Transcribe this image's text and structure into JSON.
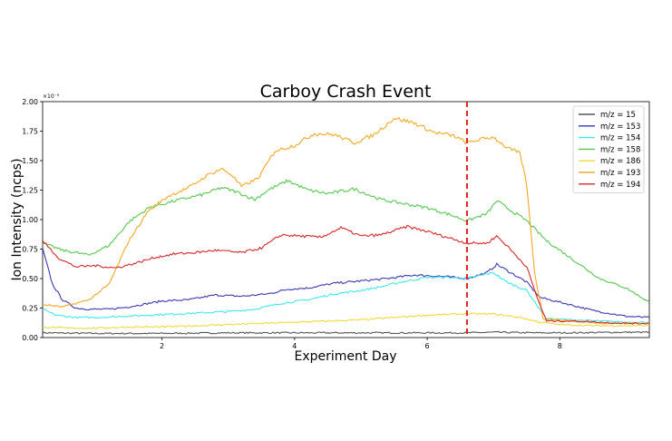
{
  "chart_data": {
    "type": "line",
    "title": "Carboy Crash Event",
    "xlabel": "Experiment Day",
    "ylabel": "Ion Intensity (ncps)",
    "y_scale_note": "×10⁻⁹",
    "xlim": [
      0.2,
      9.35
    ],
    "ylim": [
      0,
      2.0
    ],
    "xticks": [
      2,
      4,
      6,
      8
    ],
    "yticks": [
      0.0,
      0.25,
      0.5,
      0.75,
      1.0,
      1.25,
      1.5,
      1.75,
      2.0
    ],
    "ytick_labels": [
      "0.00",
      "0.25",
      "0.50",
      "0.75",
      "1.00",
      "1.25",
      "1.50",
      "1.75",
      "2.00"
    ],
    "grid": false,
    "legend_position": "top-right",
    "event_marker": {
      "x": 6.6,
      "color": "#e0201c",
      "style": "dashed"
    },
    "series": [
      {
        "name": "m/z = 15",
        "color": "#555555",
        "points": [
          [
            0.2,
            0.04
          ],
          [
            1,
            0.035
          ],
          [
            2,
            0.035
          ],
          [
            3,
            0.04
          ],
          [
            4,
            0.04
          ],
          [
            5,
            0.04
          ],
          [
            6,
            0.04
          ],
          [
            6.6,
            0.04
          ],
          [
            7,
            0.045
          ],
          [
            7.6,
            0.04
          ],
          [
            8,
            0.04
          ],
          [
            9,
            0.045
          ],
          [
            9.35,
            0.045
          ]
        ]
      },
      {
        "name": "m/z = 153",
        "color": "#3a3ab5",
        "points": [
          [
            0.2,
            0.75
          ],
          [
            0.35,
            0.45
          ],
          [
            0.5,
            0.32
          ],
          [
            0.7,
            0.25
          ],
          [
            0.9,
            0.24
          ],
          [
            1.2,
            0.24
          ],
          [
            1.5,
            0.26
          ],
          [
            1.8,
            0.29
          ],
          [
            2,
            0.31
          ],
          [
            2.4,
            0.32
          ],
          [
            2.8,
            0.36
          ],
          [
            3.2,
            0.35
          ],
          [
            3.6,
            0.37
          ],
          [
            3.9,
            0.41
          ],
          [
            4.2,
            0.42
          ],
          [
            4.6,
            0.46
          ],
          [
            5,
            0.48
          ],
          [
            5.4,
            0.5
          ],
          [
            5.8,
            0.53
          ],
          [
            6.2,
            0.52
          ],
          [
            6.6,
            0.5
          ],
          [
            6.9,
            0.55
          ],
          [
            7.05,
            0.62
          ],
          [
            7.2,
            0.57
          ],
          [
            7.5,
            0.47
          ],
          [
            7.7,
            0.34
          ],
          [
            8,
            0.3
          ],
          [
            8.5,
            0.23
          ],
          [
            9,
            0.18
          ],
          [
            9.35,
            0.17
          ]
        ]
      },
      {
        "name": "m/z = 154",
        "color": "#3fe8ef",
        "points": [
          [
            0.2,
            0.24
          ],
          [
            0.4,
            0.19
          ],
          [
            0.7,
            0.17
          ],
          [
            1,
            0.17
          ],
          [
            1.4,
            0.18
          ],
          [
            1.8,
            0.19
          ],
          [
            2.2,
            0.2
          ],
          [
            2.6,
            0.21
          ],
          [
            3,
            0.22
          ],
          [
            3.4,
            0.24
          ],
          [
            3.8,
            0.29
          ],
          [
            4.2,
            0.32
          ],
          [
            4.6,
            0.37
          ],
          [
            5,
            0.4
          ],
          [
            5.3,
            0.43
          ],
          [
            5.6,
            0.47
          ],
          [
            6,
            0.51
          ],
          [
            6.3,
            0.51
          ],
          [
            6.6,
            0.5
          ],
          [
            7.0,
            0.55
          ],
          [
            7.2,
            0.47
          ],
          [
            7.5,
            0.4
          ],
          [
            7.65,
            0.28
          ],
          [
            7.8,
            0.16
          ],
          [
            8.2,
            0.15
          ],
          [
            8.6,
            0.14
          ],
          [
            9,
            0.13
          ],
          [
            9.35,
            0.13
          ]
        ]
      },
      {
        "name": "m/z = 158",
        "color": "#55c94d",
        "points": [
          [
            0.2,
            0.8
          ],
          [
            0.5,
            0.74
          ],
          [
            0.9,
            0.7
          ],
          [
            1.2,
            0.78
          ],
          [
            1.5,
            0.98
          ],
          [
            1.8,
            1.1
          ],
          [
            2.2,
            1.16
          ],
          [
            2.6,
            1.21
          ],
          [
            2.9,
            1.27
          ],
          [
            3.1,
            1.24
          ],
          [
            3.4,
            1.17
          ],
          [
            3.6,
            1.25
          ],
          [
            3.9,
            1.33
          ],
          [
            4.2,
            1.25
          ],
          [
            4.5,
            1.22
          ],
          [
            4.9,
            1.26
          ],
          [
            5.3,
            1.17
          ],
          [
            5.6,
            1.14
          ],
          [
            6,
            1.1
          ],
          [
            6.3,
            1.05
          ],
          [
            6.6,
            0.99
          ],
          [
            6.9,
            1.05
          ],
          [
            7.05,
            1.16
          ],
          [
            7.2,
            1.1
          ],
          [
            7.5,
            0.99
          ],
          [
            7.8,
            0.82
          ],
          [
            8.2,
            0.66
          ],
          [
            8.6,
            0.5
          ],
          [
            9,
            0.42
          ],
          [
            9.35,
            0.3
          ]
        ]
      },
      {
        "name": "m/z = 186",
        "color": "#f4d93a",
        "points": [
          [
            0.2,
            0.09
          ],
          [
            0.6,
            0.08
          ],
          [
            1,
            0.08
          ],
          [
            1.5,
            0.09
          ],
          [
            2,
            0.09
          ],
          [
            2.5,
            0.1
          ],
          [
            3,
            0.11
          ],
          [
            3.5,
            0.12
          ],
          [
            4,
            0.13
          ],
          [
            4.5,
            0.14
          ],
          [
            5,
            0.15
          ],
          [
            5.5,
            0.17
          ],
          [
            6,
            0.19
          ],
          [
            6.5,
            0.2
          ],
          [
            6.6,
            0.2
          ],
          [
            7.0,
            0.2
          ],
          [
            7.4,
            0.17
          ],
          [
            7.7,
            0.13
          ],
          [
            8,
            0.11
          ],
          [
            8.5,
            0.1
          ],
          [
            9,
            0.1
          ],
          [
            9.35,
            0.1
          ]
        ]
      },
      {
        "name": "m/z = 193",
        "color": "#f6a823",
        "points": [
          [
            0.2,
            0.28
          ],
          [
            0.5,
            0.26
          ],
          [
            0.9,
            0.32
          ],
          [
            1.2,
            0.45
          ],
          [
            1.5,
            0.82
          ],
          [
            1.8,
            1.08
          ],
          [
            2.1,
            1.2
          ],
          [
            2.4,
            1.27
          ],
          [
            2.7,
            1.38
          ],
          [
            2.9,
            1.43
          ],
          [
            3.05,
            1.38
          ],
          [
            3.2,
            1.28
          ],
          [
            3.45,
            1.35
          ],
          [
            3.7,
            1.58
          ],
          [
            4,
            1.63
          ],
          [
            4.3,
            1.73
          ],
          [
            4.6,
            1.72
          ],
          [
            4.9,
            1.65
          ],
          [
            5.2,
            1.72
          ],
          [
            5.5,
            1.86
          ],
          [
            5.8,
            1.82
          ],
          [
            6.1,
            1.74
          ],
          [
            6.4,
            1.71
          ],
          [
            6.6,
            1.65
          ],
          [
            6.8,
            1.68
          ],
          [
            7.0,
            1.7
          ],
          [
            7.2,
            1.61
          ],
          [
            7.4,
            1.56
          ],
          [
            7.5,
            1.3
          ],
          [
            7.62,
            0.55
          ],
          [
            7.75,
            0.16
          ],
          [
            8.2,
            0.14
          ],
          [
            8.7,
            0.12
          ],
          [
            9,
            0.12
          ],
          [
            9.35,
            0.12
          ]
        ]
      },
      {
        "name": "m/z = 194",
        "color": "#d42a2a",
        "points": [
          [
            0.2,
            0.82
          ],
          [
            0.45,
            0.67
          ],
          [
            0.7,
            0.6
          ],
          [
            1,
            0.61
          ],
          [
            1.3,
            0.59
          ],
          [
            1.6,
            0.63
          ],
          [
            1.9,
            0.68
          ],
          [
            2.2,
            0.71
          ],
          [
            2.5,
            0.72
          ],
          [
            2.8,
            0.74
          ],
          [
            3.2,
            0.72
          ],
          [
            3.5,
            0.76
          ],
          [
            3.8,
            0.87
          ],
          [
            4.1,
            0.86
          ],
          [
            4.4,
            0.85
          ],
          [
            4.7,
            0.93
          ],
          [
            5.0,
            0.86
          ],
          [
            5.3,
            0.87
          ],
          [
            5.7,
            0.94
          ],
          [
            6.0,
            0.9
          ],
          [
            6.3,
            0.85
          ],
          [
            6.6,
            0.8
          ],
          [
            6.9,
            0.8
          ],
          [
            7.05,
            0.86
          ],
          [
            7.2,
            0.78
          ],
          [
            7.5,
            0.6
          ],
          [
            7.65,
            0.35
          ],
          [
            7.8,
            0.14
          ],
          [
            8.2,
            0.14
          ],
          [
            8.6,
            0.13
          ],
          [
            9,
            0.12
          ],
          [
            9.35,
            0.12
          ]
        ]
      }
    ]
  }
}
